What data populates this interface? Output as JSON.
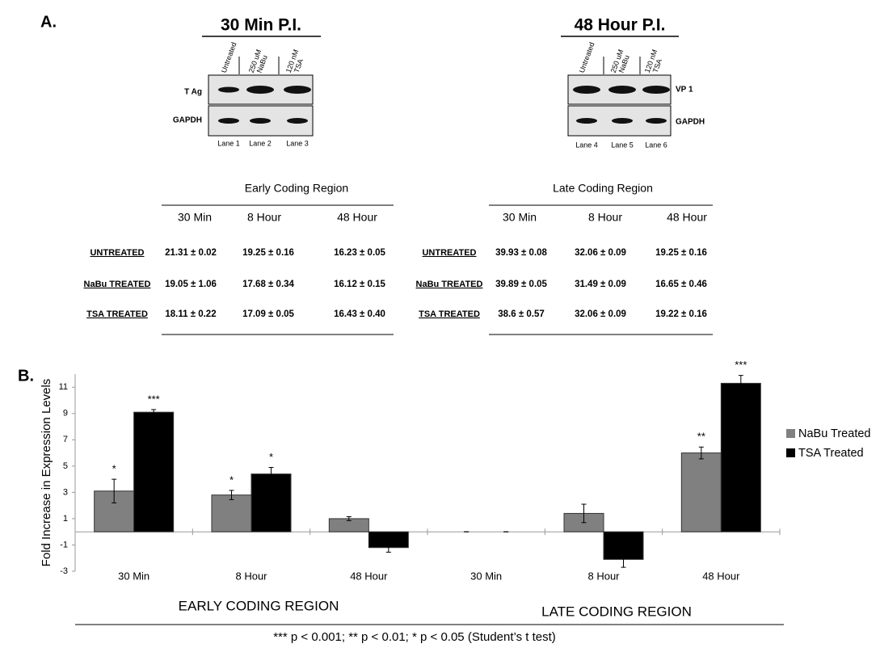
{
  "panel_a": {
    "label": "A.",
    "blots": [
      {
        "title": "30 Min P.I.",
        "lane_headers": [
          [
            "Untreated"
          ],
          [
            "250 uM",
            "NaBu"
          ],
          [
            "120 nM",
            "TSA"
          ]
        ],
        "rows": [
          "T Ag",
          "GAPDH"
        ],
        "lanes": [
          "Lane 1",
          "Lane 2",
          "Lane 3"
        ]
      },
      {
        "title": "48 Hour P.I.",
        "lane_headers": [
          [
            "Untreated"
          ],
          [
            "250 uM",
            "NaBu"
          ],
          [
            "120 nM",
            "TSA"
          ]
        ],
        "rows": [
          "VP 1",
          "GAPDH"
        ],
        "lanes": [
          "Lane 4",
          "Lane 5",
          "Lane 6"
        ]
      }
    ],
    "tables": [
      {
        "title": "Early Coding Region",
        "columns": [
          "30 Min",
          "8 Hour",
          "48 Hour"
        ],
        "rows": [
          {
            "label": "UNTREATED",
            "values": [
              "21.31 ± 0.02",
              "19.25 ± 0.16",
              "16.23 ± 0.05"
            ]
          },
          {
            "label": "NaBu TREATED",
            "values": [
              "19.05 ± 1.06",
              "17.68 ± 0.34",
              "16.12 ± 0.15"
            ]
          },
          {
            "label": "TSA TREATED",
            "values": [
              "18.11 ± 0.22",
              "17.09 ± 0.05",
              "16.43 ± 0.40"
            ]
          }
        ]
      },
      {
        "title": "Late Coding Region",
        "columns": [
          "30 Min",
          "8 Hour",
          "48 Hour"
        ],
        "rows": [
          {
            "label": "UNTREATED",
            "values": [
              "39.93 ± 0.08",
              "32.06 ± 0.09",
              "19.25 ± 0.16"
            ]
          },
          {
            "label": "NaBu TREATED",
            "values": [
              "39.89 ± 0.05",
              "31.49 ± 0.09",
              "16.65 ± 0.46"
            ]
          },
          {
            "label": "TSA TREATED",
            "values": [
              "38.6 ± 0.57",
              "32.06 ± 0.09",
              "19.22 ± 0.16"
            ]
          }
        ]
      }
    ]
  },
  "chart_data": {
    "type": "bar",
    "label": "B.",
    "y_label": "Fold Increase in Expression Levels",
    "categories": [
      "30 Min",
      "8 Hour",
      "48 Hour",
      "30 Min",
      "8 Hour",
      "48 Hour"
    ],
    "groups": [
      "EARLY CODING REGION",
      "LATE CODING REGION"
    ],
    "series": [
      {
        "name": "NaBu Treated",
        "color": "#808080",
        "values": [
          3.1,
          2.8,
          1.0,
          0,
          1.4,
          6.0
        ],
        "errors": [
          0.9,
          0.35,
          0.15,
          0,
          0.7,
          0.45
        ],
        "significance": [
          "*",
          "*",
          null,
          null,
          null,
          "**"
        ]
      },
      {
        "name": "TSA Treated",
        "color": "#000000",
        "values": [
          9.1,
          4.4,
          -1.2,
          0,
          -2.1,
          11.3
        ],
        "errors": [
          0.2,
          0.5,
          0.35,
          0,
          0.6,
          0.6
        ],
        "significance": [
          "***",
          "*",
          null,
          null,
          null,
          "***"
        ]
      }
    ],
    "ylim": [
      -3,
      12
    ],
    "yticks": [
      -3,
      -1,
      1,
      3,
      5,
      7,
      9,
      11
    ],
    "legend": "right",
    "footnote": "*** p < 0.001; ** p < 0.01; * p < 0.05 (Student’s t test)"
  }
}
